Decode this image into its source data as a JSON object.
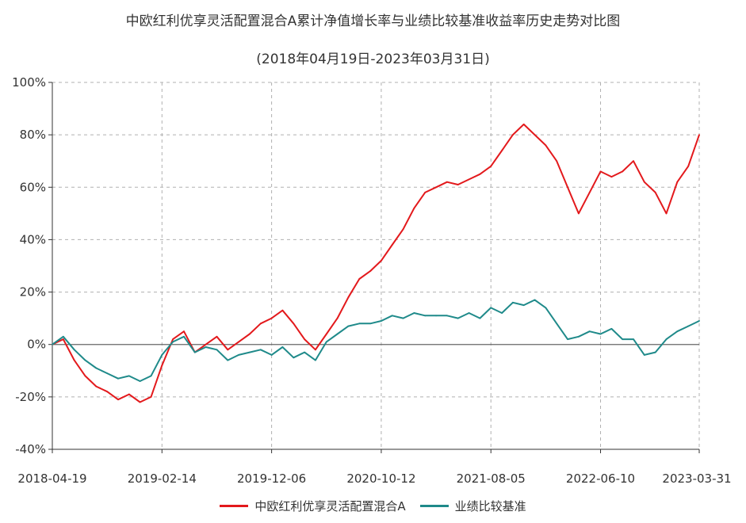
{
  "chart_data": {
    "type": "line",
    "title": "中欧红利优享灵活配置混合A累计净值增长率与业绩比较基准收益率历史走势对比图",
    "subtitle": "(2018年04月19日-2023年03月31日)",
    "xlabel": "",
    "ylabel": "",
    "x_ticks": [
      "2018-04-19",
      "2019-02-14",
      "2019-12-06",
      "2020-10-12",
      "2021-08-05",
      "2022-06-10",
      "2023-03-31"
    ],
    "y_ticks": [
      "100%",
      "80%",
      "60%",
      "40%",
      "20%",
      "0%",
      "-20%",
      "-40%"
    ],
    "ylim": [
      -40,
      100
    ],
    "grid": true,
    "legend_position": "bottom",
    "colors": {
      "fund": "#e3191c",
      "benchmark": "#1f8a8a",
      "grid": "#b0b0b0",
      "zero": "#666666"
    },
    "x": [
      "2018-04-19",
      "2018-05-19",
      "2018-06-19",
      "2018-07-19",
      "2018-08-19",
      "2018-09-19",
      "2018-10-19",
      "2018-11-19",
      "2018-12-19",
      "2019-01-19",
      "2019-02-14",
      "2019-03-19",
      "2019-04-19",
      "2019-05-19",
      "2019-06-19",
      "2019-07-19",
      "2019-08-19",
      "2019-09-19",
      "2019-10-19",
      "2019-11-19",
      "2019-12-06",
      "2020-01-19",
      "2020-02-19",
      "2020-03-19",
      "2020-04-19",
      "2020-05-19",
      "2020-06-19",
      "2020-07-19",
      "2020-08-19",
      "2020-09-19",
      "2020-10-12",
      "2020-11-19",
      "2020-12-19",
      "2021-01-19",
      "2021-02-19",
      "2021-03-19",
      "2021-04-19",
      "2021-05-19",
      "2021-06-19",
      "2021-07-19",
      "2021-08-05",
      "2021-09-19",
      "2021-10-19",
      "2021-11-19",
      "2021-12-19",
      "2022-01-19",
      "2022-02-19",
      "2022-03-19",
      "2022-04-19",
      "2022-05-19",
      "2022-06-10",
      "2022-07-19",
      "2022-08-19",
      "2022-09-19",
      "2022-10-19",
      "2022-11-19",
      "2022-12-19",
      "2023-01-19",
      "2023-02-19",
      "2023-03-31"
    ],
    "series": [
      {
        "name": "中欧红利优享灵活配置混合A",
        "values": [
          0,
          2,
          -6,
          -12,
          -16,
          -18,
          -21,
          -19,
          -22,
          -20,
          -8,
          2,
          5,
          -3,
          0,
          3,
          -2,
          1,
          4,
          8,
          10,
          13,
          8,
          2,
          -2,
          4,
          10,
          18,
          25,
          28,
          32,
          38,
          44,
          52,
          58,
          60,
          62,
          61,
          63,
          65,
          68,
          74,
          80,
          84,
          80,
          76,
          70,
          60,
          50,
          58,
          66,
          64,
          66,
          70,
          62,
          58,
          50,
          62,
          68,
          80
        ]
      },
      {
        "name": "业绩比较基准",
        "values": [
          0,
          3,
          -2,
          -6,
          -9,
          -11,
          -13,
          -12,
          -14,
          -12,
          -4,
          1,
          3,
          -3,
          -1,
          -2,
          -6,
          -4,
          -3,
          -2,
          -4,
          -1,
          -5,
          -3,
          -6,
          1,
          4,
          7,
          8,
          8,
          9,
          11,
          10,
          12,
          11,
          11,
          11,
          10,
          12,
          10,
          14,
          12,
          16,
          15,
          17,
          14,
          8,
          2,
          3,
          5,
          4,
          6,
          2,
          2,
          -4,
          -3,
          2,
          5,
          7,
          9
        ]
      }
    ]
  }
}
